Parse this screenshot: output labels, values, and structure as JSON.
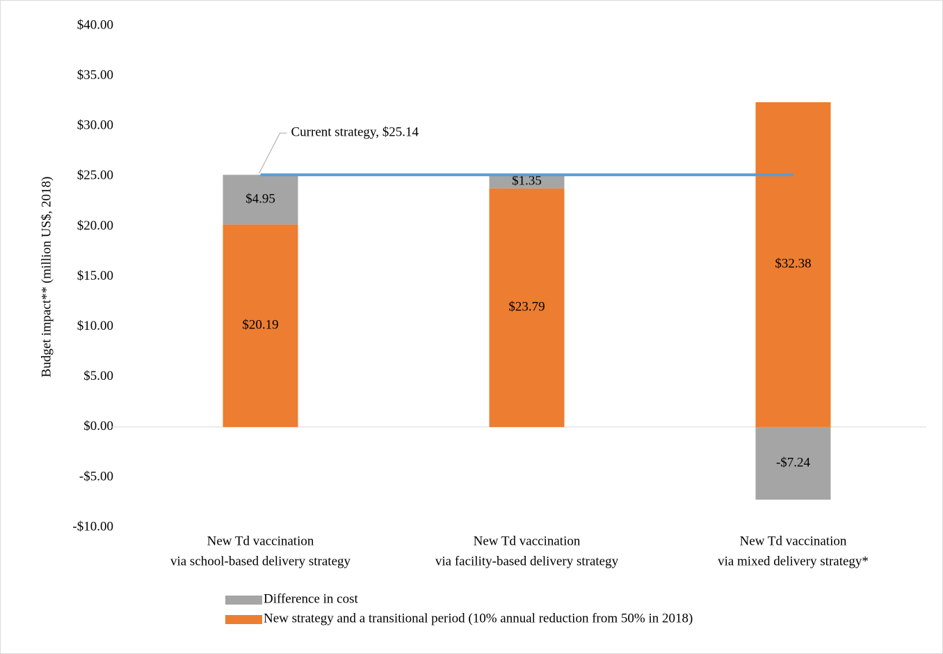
{
  "chart_data": {
    "type": "stacked-bar",
    "y_label": "Budget impact**  (million US$, 2018)",
    "categories": [
      [
        "New Td vaccination",
        "via school-based delivery strategy"
      ],
      [
        "New Td vaccination",
        "via facility-based delivery strategy"
      ],
      [
        "New Td vaccination",
        "via mixed delivery strategy*"
      ]
    ],
    "series": [
      {
        "name": "Difference in cost",
        "color": "#a5a5a5",
        "values": [
          4.95,
          1.35,
          -7.24
        ],
        "value_labels": [
          "$4.95",
          "$1.35",
          "-$7.24"
        ]
      },
      {
        "name": "New strategy and a transitional period (10% annual reduction from 50% in 2018)",
        "color": "#ed7d31",
        "values": [
          20.19,
          23.79,
          32.38
        ],
        "value_labels": [
          "$20.19",
          "$23.79",
          "$32.38"
        ]
      }
    ],
    "line": {
      "name": "Current strategy",
      "color": "#5b9bd5",
      "values": [
        25.14,
        25.14,
        25.14
      ],
      "annotation": "Current strategy,  $25.14"
    },
    "ylim": [
      -10,
      40
    ],
    "yticks": [
      {
        "value": -10,
        "label": "-$10.00"
      },
      {
        "value": -5,
        "label": "-$5.00"
      },
      {
        "value": 0,
        "label": "$0.00"
      },
      {
        "value": 5,
        "label": "$5.00"
      },
      {
        "value": 10,
        "label": "$10.00"
      },
      {
        "value": 15,
        "label": "$15.00"
      },
      {
        "value": 20,
        "label": "$20.00"
      },
      {
        "value": 25,
        "label": "$25.00"
      },
      {
        "value": 30,
        "label": "$30.00"
      },
      {
        "value": 35,
        "label": "$35.00"
      },
      {
        "value": 40,
        "label": "$40.00"
      }
    ]
  }
}
